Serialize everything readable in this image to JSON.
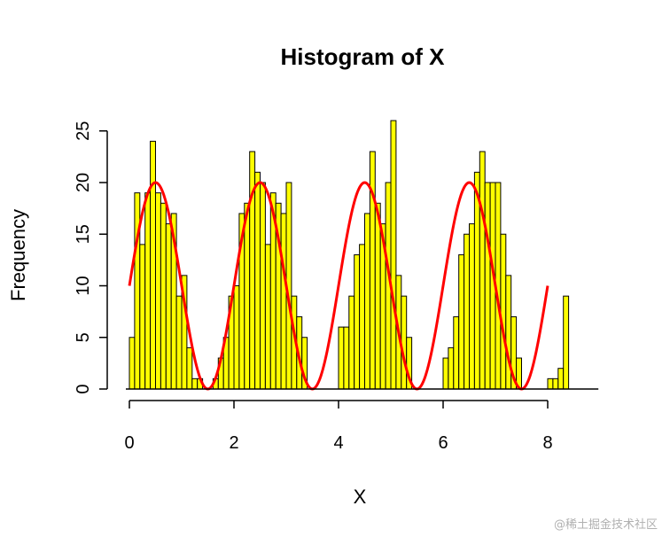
{
  "colors": {
    "bar_fill": "#ffff00",
    "bar_stroke": "#000000",
    "curve": "#ff0000",
    "axis": "#000000"
  },
  "watermark": "@稀土掘金技术社区",
  "chart_data": {
    "type": "bar",
    "title": "Histogram of X",
    "xlabel": "X",
    "ylabel": "Frequency",
    "xlim": [
      0,
      8.8
    ],
    "ylim": [
      0,
      26
    ],
    "x_ticks": [
      0,
      2,
      4,
      6,
      8
    ],
    "y_ticks": [
      0,
      5,
      10,
      15,
      20,
      25
    ],
    "bin_start": 0,
    "bin_width": 0.1,
    "values": [
      5,
      19,
      14,
      19,
      24,
      19,
      18,
      16,
      17,
      9,
      11,
      4,
      1,
      1,
      0,
      0,
      1,
      3,
      5,
      9,
      10,
      17,
      18,
      23,
      21,
      20,
      14,
      19,
      18,
      17,
      20,
      9,
      7,
      5,
      0,
      0,
      0,
      0,
      0,
      0,
      6,
      6,
      9,
      13,
      14,
      17,
      23,
      18,
      16,
      20,
      26,
      11,
      9,
      5,
      0,
      0,
      0,
      0,
      0,
      0,
      3,
      4,
      7,
      13,
      15,
      16,
      21,
      23,
      20,
      20,
      20,
      15,
      11,
      7,
      3,
      0,
      0,
      0,
      0,
      0,
      1,
      1,
      2,
      9
    ],
    "curve": {
      "type": "line",
      "name": "",
      "formula": "10*sin(pi*x)+10",
      "x_range": [
        0,
        8
      ]
    }
  }
}
